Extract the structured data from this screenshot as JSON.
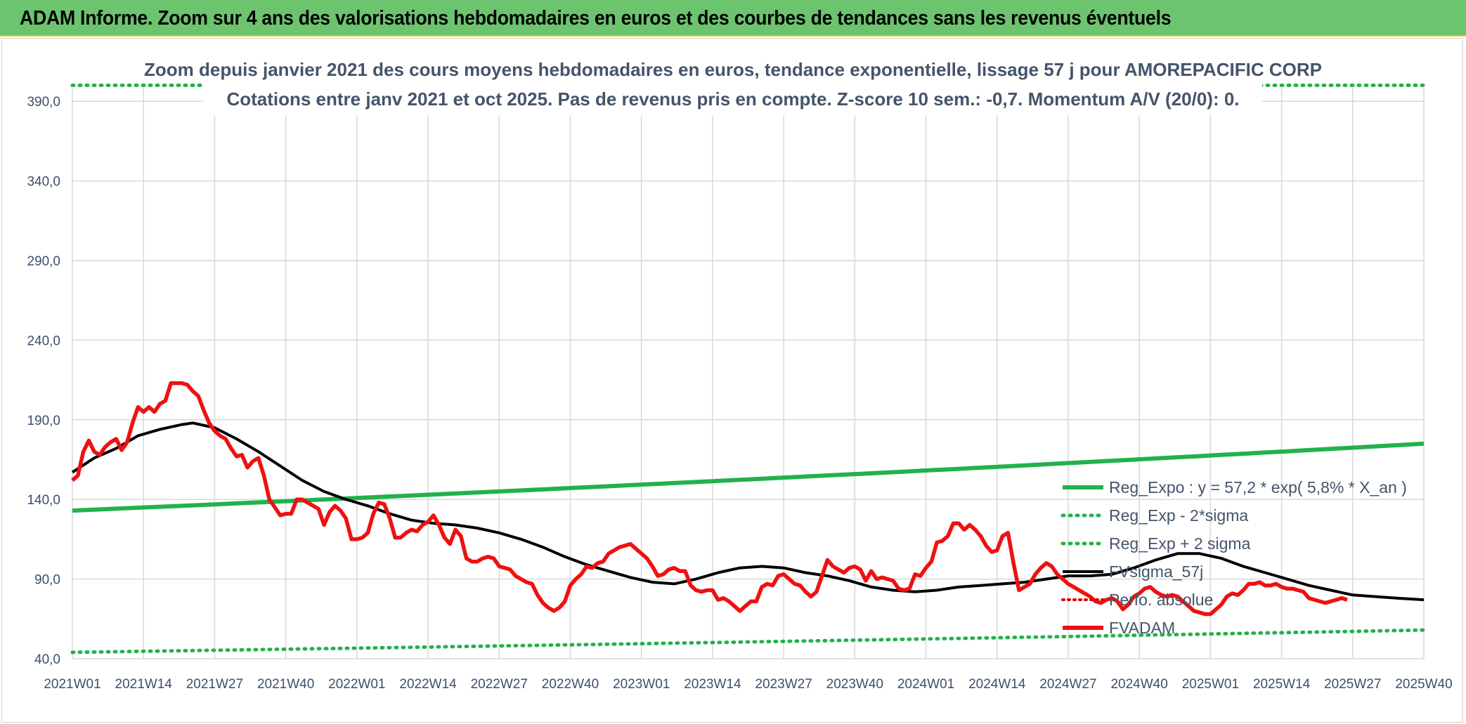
{
  "header": {
    "title": "ADAM Informe. Zoom sur 4 ans des valorisations hebdomadaires en euros et des courbes de tendances sans les revenus éventuels"
  },
  "chart_data": {
    "type": "line",
    "title_line1": "Zoom depuis janvier 2021 des cours moyens hebdomadaires en euros, tendance exponentielle, lissage 57 j pour AMOREPACIFIC CORP",
    "title_line2": "Cotations entre janv 2021 et oct 2025. Pas de revenus pris en compte. Z-score 10 sem.: -0,7. Momentum A/V (20/0): 0.",
    "ylim": [
      40,
      400
    ],
    "y_ticks": [
      "390,0",
      "340,0",
      "290,0",
      "240,0",
      "190,0",
      "140,0",
      "90,0",
      "40,0"
    ],
    "y_tick_values": [
      390,
      340,
      290,
      240,
      190,
      140,
      90,
      40
    ],
    "x_ticks": [
      "2021W01",
      "2021W14",
      "2021W27",
      "2021W40",
      "2022W01",
      "2022W14",
      "2022W27",
      "2022W40",
      "2023W01",
      "2023W14",
      "2023W27",
      "2023W40",
      "2024W01",
      "2024W14",
      "2024W27",
      "2024W40",
      "2025W01",
      "2025W14",
      "2025W27",
      "2025W40"
    ],
    "x_range_weeks": [
      0,
      247
    ],
    "grid": true,
    "legend_position": "right",
    "series": [
      {
        "name": "Reg_Expo : y = 57,2 * exp( 5,8% *  X_an )",
        "color": "#22b14c",
        "style": "solid",
        "start": 133,
        "end": 175
      },
      {
        "name": "Reg_Exp - 2*sigma",
        "color": "#22b14c",
        "style": "dotted",
        "start": 44,
        "end": 58
      },
      {
        "name": "Reg_Exp + 2 sigma",
        "color": "#22b14c",
        "style": "dotted",
        "start": 400,
        "end": 400
      },
      {
        "name": "FVsigma_57j",
        "color": "#000000",
        "style": "solid",
        "points": [
          [
            0,
            157
          ],
          [
            4,
            166
          ],
          [
            8,
            172
          ],
          [
            12,
            180
          ],
          [
            16,
            184
          ],
          [
            20,
            187
          ],
          [
            22,
            188
          ],
          [
            26,
            185
          ],
          [
            30,
            178
          ],
          [
            34,
            170
          ],
          [
            38,
            161
          ],
          [
            42,
            152
          ],
          [
            46,
            145
          ],
          [
            50,
            140
          ],
          [
            54,
            136
          ],
          [
            58,
            131
          ],
          [
            62,
            127
          ],
          [
            66,
            125
          ],
          [
            70,
            124
          ],
          [
            74,
            122
          ],
          [
            78,
            119
          ],
          [
            82,
            115
          ],
          [
            86,
            110
          ],
          [
            90,
            104
          ],
          [
            94,
            99
          ],
          [
            98,
            95
          ],
          [
            102,
            91
          ],
          [
            106,
            88
          ],
          [
            110,
            87
          ],
          [
            114,
            90
          ],
          [
            118,
            94
          ],
          [
            122,
            97
          ],
          [
            126,
            98
          ],
          [
            130,
            97
          ],
          [
            134,
            94
          ],
          [
            138,
            92
          ],
          [
            142,
            89
          ],
          [
            146,
            85
          ],
          [
            150,
            83
          ],
          [
            154,
            82
          ],
          [
            158,
            83
          ],
          [
            162,
            85
          ],
          [
            166,
            86
          ],
          [
            170,
            87
          ],
          [
            174,
            88
          ],
          [
            178,
            90
          ],
          [
            182,
            92
          ],
          [
            186,
            92
          ],
          [
            190,
            93
          ],
          [
            194,
            97
          ],
          [
            198,
            102
          ],
          [
            202,
            106
          ],
          [
            206,
            106
          ],
          [
            210,
            103
          ],
          [
            214,
            98
          ],
          [
            218,
            94
          ],
          [
            222,
            90
          ],
          [
            226,
            86
          ],
          [
            230,
            83
          ],
          [
            234,
            80
          ],
          [
            238,
            79
          ],
          [
            242,
            78
          ],
          [
            247,
            77
          ]
        ]
      },
      {
        "name": "Perfo. absolue",
        "color": "#e00000",
        "style": "dotted"
      },
      {
        "name": "FVADAM",
        "color": "#ee1111",
        "style": "solid",
        "points": [
          [
            0,
            152
          ],
          [
            1,
            155
          ],
          [
            2,
            170
          ],
          [
            3,
            177
          ],
          [
            4,
            170
          ],
          [
            5,
            168
          ],
          [
            6,
            173
          ],
          [
            7,
            176
          ],
          [
            8,
            178
          ],
          [
            9,
            171
          ],
          [
            10,
            176
          ],
          [
            11,
            188
          ],
          [
            12,
            198
          ],
          [
            13,
            195
          ],
          [
            14,
            198
          ],
          [
            15,
            195
          ],
          [
            16,
            200
          ],
          [
            17,
            202
          ],
          [
            18,
            213
          ],
          [
            19,
            213
          ],
          [
            20,
            213
          ],
          [
            21,
            212
          ],
          [
            22,
            208
          ],
          [
            23,
            205
          ],
          [
            24,
            196
          ],
          [
            25,
            188
          ],
          [
            26,
            183
          ],
          [
            27,
            180
          ],
          [
            28,
            178
          ],
          [
            29,
            172
          ],
          [
            30,
            167
          ],
          [
            31,
            168
          ],
          [
            32,
            160
          ],
          [
            33,
            164
          ],
          [
            34,
            166
          ],
          [
            35,
            155
          ],
          [
            36,
            140
          ],
          [
            37,
            135
          ],
          [
            38,
            130
          ],
          [
            39,
            131
          ],
          [
            40,
            131
          ],
          [
            41,
            140
          ],
          [
            42,
            140
          ],
          [
            43,
            138
          ],
          [
            44,
            136
          ],
          [
            45,
            134
          ],
          [
            46,
            124
          ],
          [
            47,
            132
          ],
          [
            48,
            136
          ],
          [
            49,
            133
          ],
          [
            50,
            128
          ],
          [
            51,
            115
          ],
          [
            52,
            115
          ],
          [
            53,
            116
          ],
          [
            54,
            119
          ],
          [
            55,
            131
          ],
          [
            56,
            138
          ],
          [
            57,
            137
          ],
          [
            58,
            128
          ],
          [
            59,
            116
          ],
          [
            60,
            116
          ],
          [
            61,
            119
          ],
          [
            62,
            121
          ],
          [
            63,
            120
          ],
          [
            64,
            124
          ],
          [
            65,
            126
          ],
          [
            66,
            130
          ],
          [
            67,
            124
          ],
          [
            68,
            116
          ],
          [
            69,
            112
          ],
          [
            70,
            121
          ],
          [
            71,
            117
          ],
          [
            72,
            103
          ],
          [
            73,
            101
          ],
          [
            74,
            101
          ],
          [
            75,
            103
          ],
          [
            76,
            104
          ],
          [
            77,
            103
          ],
          [
            78,
            98
          ],
          [
            79,
            97
          ],
          [
            80,
            96
          ],
          [
            81,
            92
          ],
          [
            82,
            90
          ],
          [
            83,
            88
          ],
          [
            84,
            87
          ],
          [
            85,
            80
          ],
          [
            86,
            75
          ],
          [
            87,
            72
          ],
          [
            88,
            70
          ],
          [
            89,
            72
          ],
          [
            90,
            76
          ],
          [
            91,
            86
          ],
          [
            92,
            90
          ],
          [
            93,
            93
          ],
          [
            94,
            98
          ],
          [
            95,
            97
          ],
          [
            96,
            100
          ],
          [
            97,
            101
          ],
          [
            98,
            106
          ],
          [
            99,
            108
          ],
          [
            100,
            110
          ],
          [
            101,
            111
          ],
          [
            102,
            112
          ],
          [
            103,
            109
          ],
          [
            104,
            106
          ],
          [
            105,
            103
          ],
          [
            106,
            98
          ],
          [
            107,
            92
          ],
          [
            108,
            93
          ],
          [
            109,
            96
          ],
          [
            110,
            97
          ],
          [
            111,
            95
          ],
          [
            112,
            95
          ],
          [
            113,
            86
          ],
          [
            114,
            83
          ],
          [
            115,
            82
          ],
          [
            116,
            83
          ],
          [
            117,
            83
          ],
          [
            118,
            77
          ],
          [
            119,
            78
          ],
          [
            120,
            76
          ],
          [
            121,
            73
          ],
          [
            122,
            70
          ],
          [
            123,
            73
          ],
          [
            124,
            76
          ],
          [
            125,
            76
          ],
          [
            126,
            85
          ],
          [
            127,
            87
          ],
          [
            128,
            86
          ],
          [
            129,
            92
          ],
          [
            130,
            93
          ],
          [
            131,
            90
          ],
          [
            132,
            87
          ],
          [
            133,
            86
          ],
          [
            134,
            82
          ],
          [
            135,
            79
          ],
          [
            136,
            82
          ],
          [
            137,
            92
          ],
          [
            138,
            102
          ],
          [
            139,
            98
          ],
          [
            140,
            96
          ],
          [
            141,
            94
          ],
          [
            142,
            97
          ],
          [
            143,
            98
          ],
          [
            144,
            96
          ],
          [
            145,
            89
          ],
          [
            146,
            95
          ],
          [
            147,
            90
          ],
          [
            148,
            91
          ],
          [
            149,
            90
          ],
          [
            150,
            89
          ],
          [
            151,
            84
          ],
          [
            152,
            83
          ],
          [
            153,
            84
          ],
          [
            154,
            93
          ],
          [
            155,
            92
          ],
          [
            156,
            97
          ],
          [
            157,
            101
          ],
          [
            158,
            113
          ],
          [
            159,
            114
          ],
          [
            160,
            117
          ],
          [
            161,
            125
          ],
          [
            162,
            125
          ],
          [
            163,
            121
          ],
          [
            164,
            124
          ],
          [
            165,
            121
          ],
          [
            166,
            117
          ],
          [
            167,
            111
          ],
          [
            168,
            107
          ],
          [
            169,
            108
          ],
          [
            170,
            117
          ],
          [
            171,
            119
          ],
          [
            172,
            100
          ],
          [
            173,
            83
          ],
          [
            174,
            85
          ],
          [
            175,
            87
          ],
          [
            176,
            93
          ],
          [
            177,
            97
          ],
          [
            178,
            100
          ],
          [
            179,
            98
          ],
          [
            180,
            93
          ],
          [
            181,
            90
          ],
          [
            182,
            87
          ],
          [
            183,
            85
          ],
          [
            184,
            83
          ],
          [
            185,
            81
          ],
          [
            186,
            79
          ],
          [
            187,
            76
          ],
          [
            188,
            75
          ],
          [
            189,
            77
          ],
          [
            190,
            78
          ],
          [
            191,
            76
          ],
          [
            192,
            71
          ],
          [
            193,
            74
          ],
          [
            194,
            79
          ],
          [
            195,
            81
          ],
          [
            196,
            84
          ],
          [
            197,
            85
          ],
          [
            198,
            82
          ],
          [
            199,
            80
          ],
          [
            200,
            79
          ],
          [
            201,
            80
          ],
          [
            202,
            79
          ],
          [
            203,
            76
          ],
          [
            204,
            73
          ],
          [
            205,
            70
          ],
          [
            206,
            69
          ],
          [
            207,
            68
          ],
          [
            208,
            68
          ],
          [
            209,
            71
          ],
          [
            210,
            74
          ],
          [
            211,
            79
          ],
          [
            212,
            81
          ],
          [
            213,
            80
          ],
          [
            214,
            83
          ],
          [
            215,
            87
          ],
          [
            216,
            87
          ],
          [
            217,
            88
          ],
          [
            218,
            86
          ],
          [
            219,
            86
          ],
          [
            220,
            87
          ],
          [
            221,
            85
          ],
          [
            222,
            84
          ],
          [
            223,
            84
          ],
          [
            224,
            83
          ],
          [
            225,
            82
          ],
          [
            226,
            78
          ],
          [
            227,
            77
          ],
          [
            228,
            76
          ],
          [
            229,
            75
          ],
          [
            230,
            76
          ],
          [
            231,
            77
          ],
          [
            232,
            78
          ],
          [
            233,
            77
          ]
        ]
      }
    ]
  }
}
